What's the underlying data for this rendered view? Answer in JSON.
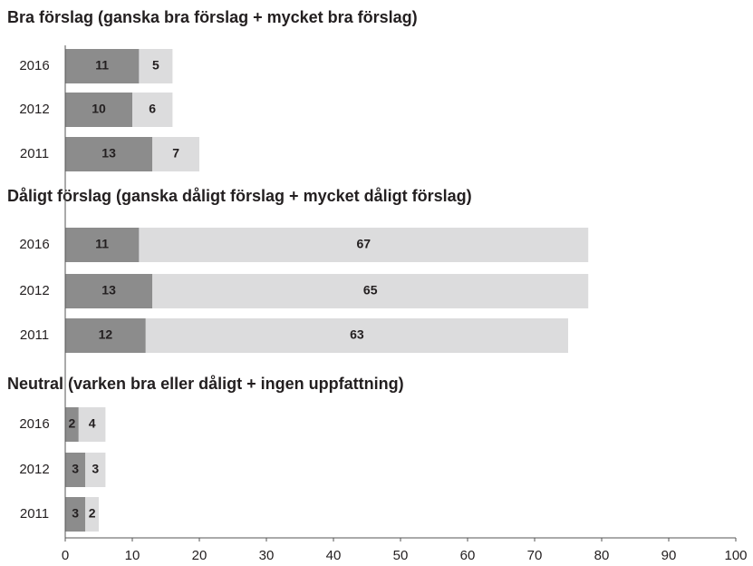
{
  "chart_data": {
    "type": "bar",
    "orientation": "horizontal",
    "stacked": true,
    "groups": [
      {
        "title": "Bra förslag (ganska bra förslag + mycket bra förslag)",
        "categories": [
          "2016",
          "2012",
          "2011"
        ],
        "series": [
          {
            "color": "#8c8c8c",
            "values": [
              11,
              10,
              13
            ]
          },
          {
            "color": "#dcdcdd",
            "values": [
              5,
              6,
              7
            ]
          }
        ]
      },
      {
        "title": "Dåligt förslag (ganska dåligt förslag + mycket dåligt förslag)",
        "categories": [
          "2016",
          "2012",
          "2011"
        ],
        "series": [
          {
            "color": "#8c8c8c",
            "values": [
              11,
              13,
              12
            ]
          },
          {
            "color": "#dcdcdd",
            "values": [
              67,
              65,
              63
            ]
          }
        ]
      },
      {
        "title": "Neutral (varken bra eller dåligt + ingen uppfattning)",
        "categories": [
          "2016",
          "2012",
          "2011"
        ],
        "series": [
          {
            "color": "#8c8c8c",
            "values": [
              2,
              3,
              3
            ]
          },
          {
            "color": "#dcdcdd",
            "values": [
              4,
              3,
              2
            ]
          }
        ]
      }
    ],
    "xlim": [
      0,
      100
    ],
    "xticks": [
      0,
      10,
      20,
      30,
      40,
      50,
      60,
      70,
      80,
      90,
      100
    ]
  }
}
